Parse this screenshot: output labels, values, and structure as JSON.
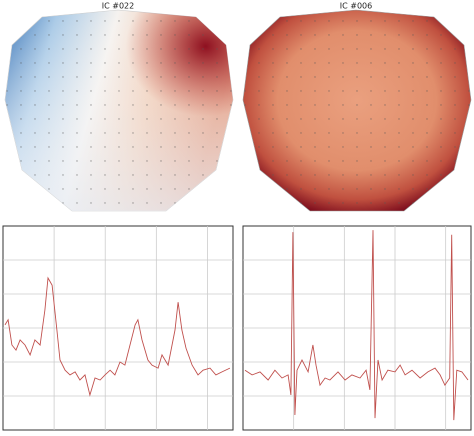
{
  "chart_data": [
    {
      "type": "line",
      "title": "IC #022",
      "color": "#c0504d",
      "grid": true,
      "xlim": [
        0,
        90
      ],
      "xticks": [
        20,
        40,
        60,
        80
      ],
      "ylim": [
        0,
        6
      ],
      "yticks": [
        1,
        2,
        3,
        4,
        5
      ],
      "x": [
        0.8,
        2.0,
        3.5,
        5.1,
        6.7,
        8.6,
        10.6,
        12.5,
        14.5,
        16.4,
        17.6,
        19.2,
        21.1,
        22.3,
        24.3,
        26.2,
        28.2,
        30.1,
        32.1,
        34.0,
        36.0,
        38.0,
        39.9,
        41.9,
        43.8,
        45.8,
        47.7,
        49.7,
        51.7,
        52.8,
        54.4,
        56.7,
        58.3,
        60.7,
        62.2,
        64.6,
        67.3,
        68.5,
        70.0,
        71.6,
        74.0,
        76.3,
        78.3,
        81.0,
        83.3,
        85.7,
        88.8
      ],
      "values": [
        3.09,
        3.24,
        2.5,
        2.35,
        2.65,
        2.5,
        2.21,
        2.65,
        2.5,
        3.53,
        4.47,
        4.26,
        2.94,
        2.06,
        1.76,
        1.62,
        1.71,
        1.47,
        1.62,
        1.03,
        1.53,
        1.47,
        1.62,
        1.76,
        1.62,
        2.0,
        1.91,
        2.5,
        3.09,
        3.24,
        2.65,
        2.06,
        1.91,
        1.82,
        2.21,
        1.91,
        2.94,
        3.76,
        2.94,
        2.41,
        1.91,
        1.62,
        1.76,
        1.82,
        1.62,
        1.71,
        1.82
      ]
    },
    {
      "type": "line",
      "title": "IC #006",
      "color": "#c0504d",
      "grid": true,
      "xlim": [
        0,
        90
      ],
      "xticks": [
        20,
        40,
        60,
        80
      ],
      "ylim": [
        0,
        6
      ],
      "yticks": [
        1,
        2,
        3,
        4,
        5
      ],
      "x": [
        0.8,
        3.6,
        6.7,
        9.9,
        12.6,
        15.4,
        17.8,
        18.9,
        19.7,
        20.5,
        21.3,
        23.3,
        25.7,
        27.6,
        28.8,
        30.4,
        32.4,
        34.3,
        37.5,
        40.3,
        43.0,
        46.2,
        48.6,
        50.1,
        51.3,
        52.1,
        53.3,
        54.9,
        57.2,
        60.0,
        62.0,
        64.0,
        66.7,
        69.9,
        73.0,
        75.8,
        77.8,
        79.7,
        81.6,
        82.4,
        83.2,
        84.4,
        86.4,
        88.8
      ],
      "values": [
        1.76,
        1.62,
        1.71,
        1.47,
        1.76,
        1.53,
        1.62,
        1.03,
        5.82,
        0.44,
        1.76,
        2.06,
        1.71,
        2.5,
        1.91,
        1.32,
        1.53,
        1.47,
        1.71,
        1.47,
        1.62,
        1.53,
        1.76,
        1.18,
        5.88,
        0.35,
        2.06,
        1.47,
        1.76,
        1.71,
        1.91,
        1.62,
        1.76,
        1.53,
        1.71,
        1.82,
        1.62,
        1.32,
        1.53,
        5.74,
        0.29,
        1.76,
        1.71,
        1.47
      ]
    }
  ]
}
